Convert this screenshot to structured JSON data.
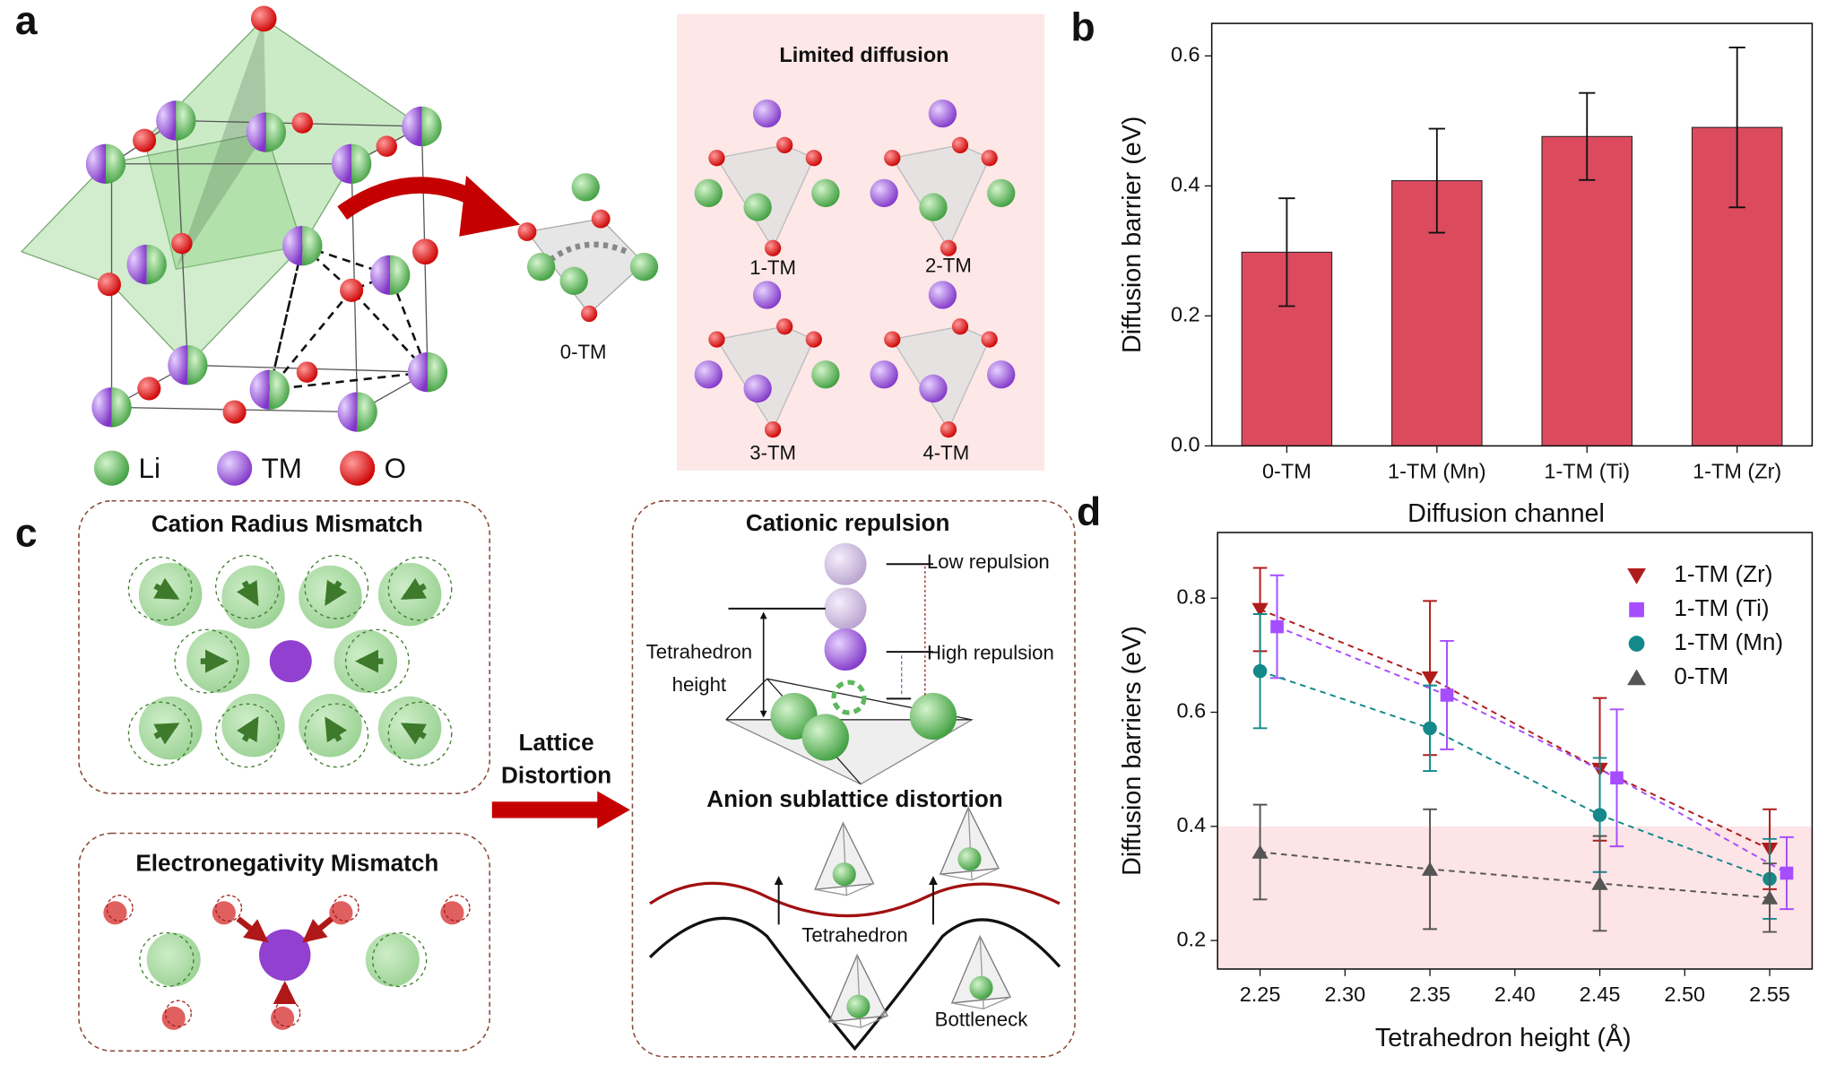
{
  "panel_labels": [
    "a",
    "b",
    "c",
    "d"
  ],
  "panel_a": {
    "legend": [
      "Li",
      "TM",
      "O"
    ],
    "center_label": "0-TM",
    "box_title": "Limited diffusion",
    "box_labels": [
      "1-TM",
      "2-TM",
      "3-TM",
      "4-TM"
    ]
  },
  "panel_c": {
    "left_titles": [
      "Cation Radius Mismatch",
      "Electronegativity Mismatch"
    ],
    "arrow_label": [
      "Lattice",
      "Distortion"
    ],
    "right_titles": [
      "Cationic repulsion",
      "Anion sublattice distortion"
    ],
    "repulsion_labels": [
      "Low repulsion",
      "High repulsion"
    ],
    "height_label": [
      "Tetrahedron",
      "height"
    ],
    "wave_labels": [
      "Tetrahedron",
      "Bottleneck"
    ]
  },
  "chart_data": [
    {
      "type": "bar",
      "categories": [
        "0-TM",
        "1-TM (Mn)",
        "1-TM (Ti)",
        "1-TM (Zr)"
      ],
      "values": [
        0.298,
        0.408,
        0.476,
        0.49
      ],
      "errors": [
        0.083,
        0.08,
        0.067,
        0.123
      ],
      "color": "#dc4a5e",
      "x_label": "Diffusion channel",
      "y_label": "Diffusion barrier (eV)",
      "ylim": [
        0,
        0.65
      ],
      "yticks": [
        {
          "value": 0,
          "label": "0.0"
        },
        0.2,
        0.4,
        0.6
      ]
    },
    {
      "type": "line",
      "x_label": "Tetrahedron height (Å)",
      "y_label": "Diffusion barriers (eV)",
      "xlim": [
        2.225,
        2.575
      ],
      "ylim": [
        0.15,
        0.915
      ],
      "xticks": [
        2.25,
        {
          "value": 2.3,
          "label": "2.30"
        },
        2.35,
        {
          "value": 2.4,
          "label": "2.40"
        },
        2.45,
        {
          "value": 2.5,
          "label": "2.50"
        },
        2.55
      ],
      "yticks": [
        0.2,
        0.4,
        0.6,
        0.8
      ],
      "highlight_band": [
        0.15,
        0.4
      ],
      "highlight_color": "#fde4e6",
      "line_style": "dashed",
      "legend": "upper right",
      "series": [
        {
          "name": "1-TM (Zr)",
          "color": "#b01c1c",
          "marker": "triangle-down",
          "x": [
            2.25,
            2.35,
            2.45,
            2.55
          ],
          "values": [
            0.78,
            0.66,
            0.5,
            0.36
          ],
          "errors": [
            0.073,
            0.135,
            0.125,
            0.07
          ]
        },
        {
          "name": "1-TM (Ti)",
          "color": "#a64dff",
          "marker": "square",
          "x": [
            2.26,
            2.36,
            2.46,
            2.56
          ],
          "values": [
            0.75,
            0.63,
            0.485,
            0.318
          ],
          "errors": [
            0.09,
            0.095,
            0.12,
            0.063
          ]
        },
        {
          "name": "1-TM (Mn)",
          "color": "#13898a",
          "marker": "circle",
          "x": [
            2.25,
            2.35,
            2.45,
            2.55
          ],
          "values": [
            0.672,
            0.572,
            0.42,
            0.308
          ],
          "errors": [
            0.1,
            0.075,
            0.1,
            0.07
          ]
        },
        {
          "name": "0-TM",
          "color": "#555555",
          "marker": "triangle-up",
          "x": [
            2.25,
            2.35,
            2.45,
            2.55
          ],
          "values": [
            0.355,
            0.325,
            0.3,
            0.275
          ],
          "errors": [
            0.083,
            0.105,
            0.083,
            0.06
          ]
        }
      ]
    }
  ]
}
